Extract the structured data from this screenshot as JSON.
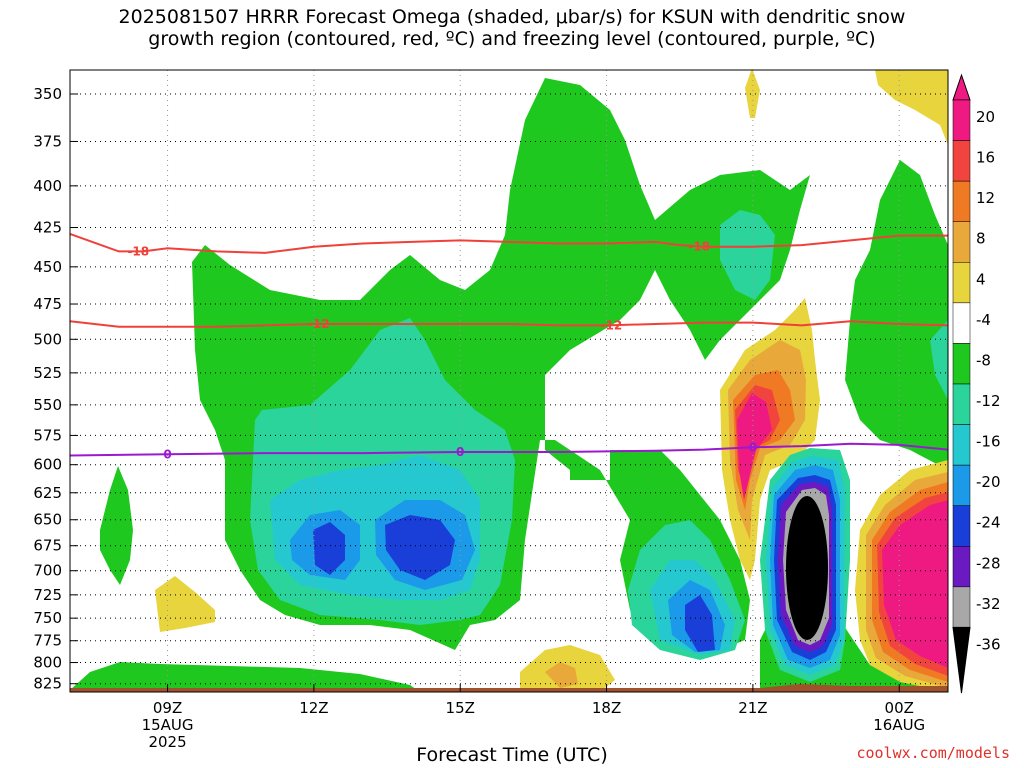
{
  "title_line1": "2025081507 HRRR Forecast Omega (shaded, μbar/s) for KSUN with dendritic snow",
  "title_line2": "growth region (contoured, red, ºC) and freezing level (contoured, purple, ºC)",
  "credit": "coolwx.com/models",
  "chart_data": {
    "type": "time-height contour",
    "title": "2025081507 HRRR Forecast Omega (shaded, μbar/s) for KSUN with dendritic snow growth region (contoured, red, ºC) and freezing level (contoured, purple, ºC)",
    "xlabel": "Forecast Time (UTC)",
    "ylabel": "",
    "x_ticks": [
      {
        "label": "09Z",
        "sub1": "15AUG",
        "sub2": "2025",
        "hour": 9
      },
      {
        "label": "12Z",
        "sub1": "",
        "sub2": "",
        "hour": 12
      },
      {
        "label": "15Z",
        "sub1": "",
        "sub2": "",
        "hour": 15
      },
      {
        "label": "18Z",
        "sub1": "",
        "sub2": "",
        "hour": 18
      },
      {
        "label": "21Z",
        "sub1": "",
        "sub2": "",
        "hour": 21
      },
      {
        "label": "00Z",
        "sub1": "16AUG",
        "sub2": "",
        "hour": 24
      }
    ],
    "x_range_hours": [
      7.0,
      25.0
    ],
    "y_ticks": [
      350,
      375,
      400,
      425,
      450,
      475,
      500,
      525,
      550,
      575,
      600,
      625,
      650,
      675,
      700,
      725,
      750,
      775,
      800,
      825
    ],
    "y_range_hpa": [
      338,
      835
    ],
    "y_scale": "log-pressure (inverted)",
    "grid": true,
    "colorbar": {
      "labels": [
        20,
        16,
        12,
        8,
        4,
        -4,
        -8,
        -12,
        -16,
        -20,
        -24,
        -28,
        -32,
        -36
      ],
      "colors": [
        "#ee1a82",
        "#f2443f",
        "#f07a24",
        "#e8a83a",
        "#e8d43c",
        "#ffffff",
        "#1fc81f",
        "#2ad49a",
        "#26c8d0",
        "#1a9ae8",
        "#1a3ed8",
        "#6a1ac0",
        "#a8a8a8",
        "#000000"
      ],
      "placement": "right"
    },
    "contours": [
      {
        "name": "red",
        "label": "-18",
        "color": "#f0403a",
        "label_hour": 8.4,
        "label_hour2": 19.9,
        "points": [
          [
            7.0,
            429
          ],
          [
            8.0,
            440
          ],
          [
            8.5,
            440
          ],
          [
            9,
            438
          ],
          [
            10,
            440
          ],
          [
            11,
            441
          ],
          [
            12,
            437
          ],
          [
            13,
            435
          ],
          [
            14,
            434
          ],
          [
            15,
            433
          ],
          [
            16,
            434
          ],
          [
            17,
            435
          ],
          [
            18,
            435
          ],
          [
            19,
            434
          ],
          [
            19.5,
            436
          ],
          [
            20,
            437
          ],
          [
            21,
            437
          ],
          [
            22,
            436
          ],
          [
            23,
            433
          ],
          [
            24,
            430
          ],
          [
            25,
            430
          ]
        ]
      },
      {
        "name": "red",
        "label": "-12",
        "color": "#f0403a",
        "label_hour": 12.1,
        "label_hour2": 18.1,
        "points": [
          [
            7.0,
            487
          ],
          [
            8,
            491
          ],
          [
            9,
            491
          ],
          [
            10,
            491
          ],
          [
            11,
            490
          ],
          [
            12,
            489
          ],
          [
            13,
            489
          ],
          [
            14,
            489
          ],
          [
            15,
            489
          ],
          [
            16,
            489
          ],
          [
            17,
            490
          ],
          [
            18,
            490
          ],
          [
            19,
            489
          ],
          [
            20,
            488
          ],
          [
            21,
            488
          ],
          [
            22,
            490
          ],
          [
            23,
            487
          ],
          [
            24,
            489
          ],
          [
            25,
            490
          ]
        ]
      },
      {
        "name": "purple",
        "label": "0",
        "color": "#9a1ad0",
        "label_hour": 9.0,
        "label_hour2": 15.0,
        "label_hour3": 21.0,
        "points": [
          [
            7.0,
            592
          ],
          [
            9,
            591
          ],
          [
            11,
            590
          ],
          [
            13,
            590
          ],
          [
            15,
            589
          ],
          [
            17,
            589
          ],
          [
            19,
            588
          ],
          [
            20,
            587
          ],
          [
            21,
            585
          ],
          [
            22,
            584
          ],
          [
            23,
            582
          ],
          [
            24,
            583
          ],
          [
            25,
            587
          ]
        ]
      }
    ]
  }
}
